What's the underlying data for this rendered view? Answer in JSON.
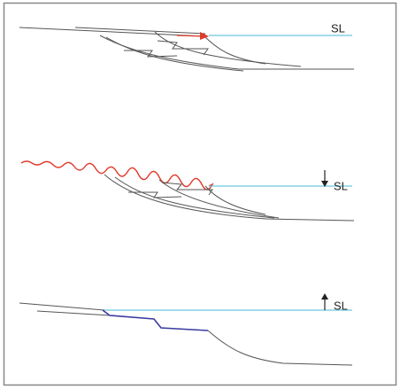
{
  "panels": [
    {
      "sea_level_label": "SL"
    },
    {
      "sea_level_label": "SL"
    },
    {
      "sea_level_label": "SL"
    }
  ]
}
